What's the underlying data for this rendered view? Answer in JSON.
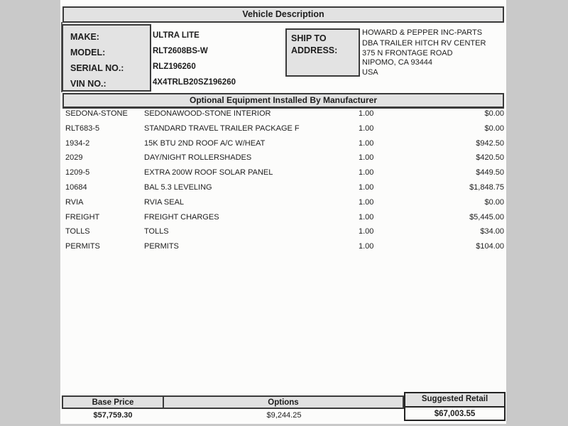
{
  "section1_title": "Vehicle Description",
  "vehicle": {
    "make_label": "MAKE:",
    "make": "ULTRA LITE",
    "model_label": "MODEL:",
    "model": "RLT2608BS-W",
    "serial_label": "SERIAL NO.:",
    "serial": "RLZ196260",
    "vin_label": "VIN NO.:",
    "vin": "4X4TRLB20SZ196260"
  },
  "shipto": {
    "label_line1": "SHIP TO",
    "label_line2": "ADDRESS:",
    "address_lines": [
      "HOWARD & PEPPER INC-PARTS",
      "DBA TRAILER HITCH RV CENTER",
      "375 N FRONTAGE ROAD",
      "NIPOMO, CA 93444",
      "USA"
    ]
  },
  "section2_title": "Optional Equipment Installed By Manufacturer",
  "equipment_rows": [
    {
      "code": "SEDONA-STONE",
      "description": "SEDONAWOOD-STONE INTERIOR",
      "qty": "1.00",
      "price": "$0.00"
    },
    {
      "code": "RLT683-5",
      "description": "STANDARD TRAVEL TRAILER PACKAGE F",
      "qty": "1.00",
      "price": "$0.00"
    },
    {
      "code": "1934-2",
      "description": "15K BTU 2ND ROOF A/C W/HEAT",
      "qty": "1.00",
      "price": "$942.50"
    },
    {
      "code": "2029",
      "description": "DAY/NIGHT ROLLERSHADES",
      "qty": "1.00",
      "price": "$420.50"
    },
    {
      "code": "1209-5",
      "description": "EXTRA 200W ROOF SOLAR PANEL",
      "qty": "1.00",
      "price": "$449.50"
    },
    {
      "code": "10684",
      "description": "BAL 5.3 LEVELING",
      "qty": "1.00",
      "price": "$1,848.75"
    },
    {
      "code": "RVIA",
      "description": "RVIA SEAL",
      "qty": "1.00",
      "price": "$0.00"
    },
    {
      "code": "FREIGHT",
      "description": "FREIGHT CHARGES",
      "qty": "1.00",
      "price": "$5,445.00"
    },
    {
      "code": "TOLLS",
      "description": "TOLLS",
      "qty": "1.00",
      "price": "$34.00"
    },
    {
      "code": "PERMITS",
      "description": "PERMITS",
      "qty": "1.00",
      "price": "$104.00"
    }
  ],
  "summary": {
    "base_price_label": "Base Price",
    "base_price": "$57,759.30",
    "options_label": "Options",
    "options": "$9,244.25",
    "suggested_retail_label": "Suggested Retail",
    "suggested_retail": "$67,003.55"
  },
  "colors": {
    "background": "#c9c9c9",
    "page": "#fcfcfb",
    "header_fill": "#e2e2e2",
    "border": "#3a3a3a"
  }
}
